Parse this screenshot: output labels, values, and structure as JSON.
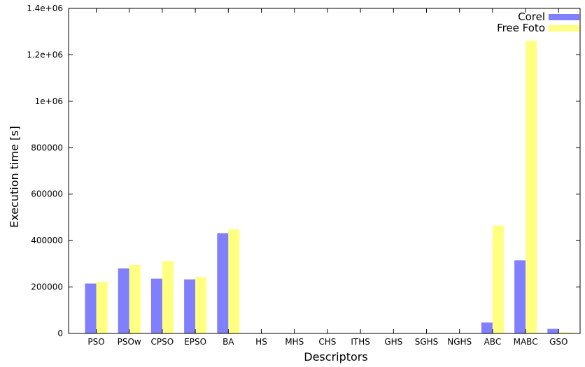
{
  "chart_data": {
    "type": "bar",
    "categories": [
      "PSO",
      "PSOw",
      "CPSO",
      "EPSO",
      "BA",
      "HS",
      "MHS",
      "CHS",
      "ITHS",
      "GHS",
      "SGHS",
      "NGHS",
      "ABC",
      "MABC",
      "GSO"
    ],
    "series": [
      {
        "name": "Corel",
        "color": "#8080ff",
        "values": [
          215000,
          280000,
          236000,
          233000,
          432000,
          0,
          0,
          0,
          0,
          0,
          0,
          0,
          47000,
          315000,
          20000
        ]
      },
      {
        "name": "Free Foto",
        "color": "#ffff80",
        "values": [
          222000,
          295000,
          312000,
          242000,
          448000,
          0,
          0,
          0,
          0,
          0,
          0,
          0,
          465000,
          1260000,
          5000
        ]
      }
    ],
    "xlabel": "Descriptors",
    "ylabel": "Execution time [s]",
    "ylim": [
      0,
      1400000
    ],
    "yticks": [
      {
        "value": 0,
        "label": "0"
      },
      {
        "value": 200000,
        "label": "200000"
      },
      {
        "value": 400000,
        "label": "400000"
      },
      {
        "value": 600000,
        "label": "600000"
      },
      {
        "value": 800000,
        "label": "800000"
      },
      {
        "value": 1000000,
        "label": "1e+06"
      },
      {
        "value": 1200000,
        "label": "1.2e+06"
      },
      {
        "value": 1400000,
        "label": "1.4e+06"
      }
    ],
    "grid": false,
    "legend_position": "top-right"
  }
}
